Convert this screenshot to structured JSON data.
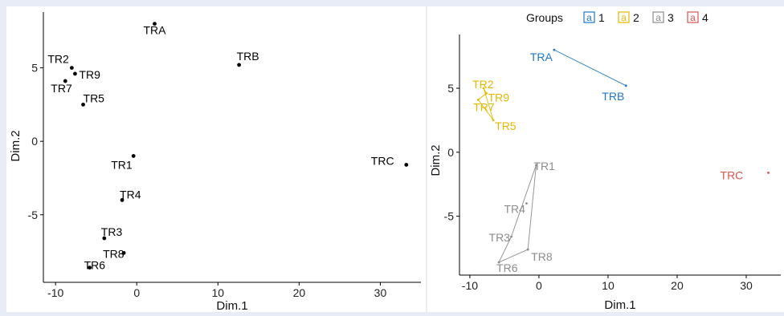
{
  "chart_data": [
    {
      "type": "scatter",
      "title": "",
      "xlabel": "Dim.1",
      "ylabel": "Dim.2",
      "xlim": [
        -11.5,
        35
      ],
      "ylim": [
        -9.6,
        8.8
      ],
      "x_ticks": [
        -10,
        0,
        10,
        20,
        30
      ],
      "y_ticks": [
        -5,
        0,
        5
      ],
      "grid": false,
      "points": [
        {
          "label": "TRA",
          "x": 2.2,
          "y": 8.0
        },
        {
          "label": "TRB",
          "x": 12.6,
          "y": 5.2
        },
        {
          "label": "TR2",
          "x": -8.0,
          "y": 5.0
        },
        {
          "label": "TR9",
          "x": -7.6,
          "y": 4.6
        },
        {
          "label": "TR7",
          "x": -8.8,
          "y": 4.1
        },
        {
          "label": "TR5",
          "x": -6.6,
          "y": 2.5
        },
        {
          "label": "TR1",
          "x": -0.4,
          "y": -1.0
        },
        {
          "label": "TRC",
          "x": 33.2,
          "y": -1.6
        },
        {
          "label": "TR4",
          "x": -1.8,
          "y": -4.0
        },
        {
          "label": "TR3",
          "x": -4.0,
          "y": -6.6
        },
        {
          "label": "TR8",
          "x": -1.6,
          "y": -7.6
        },
        {
          "label": "TR6",
          "x": -5.8,
          "y": -8.6
        }
      ]
    },
    {
      "type": "scatter",
      "title": "",
      "xlabel": "Dim.1",
      "ylabel": "Dim.2",
      "xlim": [
        -11.5,
        35
      ],
      "ylim": [
        -9.6,
        9.2
      ],
      "x_ticks": [
        -10,
        0,
        10,
        20,
        30
      ],
      "y_ticks": [
        -5,
        0,
        5
      ],
      "grid": false,
      "legend": {
        "position": "top",
        "title": "Groups",
        "key_glyph": "a",
        "entries": [
          {
            "label": "1",
            "color": "#1f77c9"
          },
          {
            "label": "2",
            "color": "#e6b800"
          },
          {
            "label": "3",
            "color": "#8c8c8c"
          },
          {
            "label": "4",
            "color": "#d9534f"
          }
        ]
      },
      "series": [
        {
          "name": "1",
          "color": "#1f77c9",
          "hull": [
            "TRA",
            "TRB"
          ],
          "points": [
            {
              "label": "TRA",
              "x": 2.2,
              "y": 8.0
            },
            {
              "label": "TRB",
              "x": 12.6,
              "y": 5.2
            }
          ]
        },
        {
          "name": "2",
          "color": "#e6b800",
          "hull": [
            "TR2",
            "TR5",
            "TR7",
            "TR9"
          ],
          "points": [
            {
              "label": "TR2",
              "x": -8.0,
              "y": 5.0
            },
            {
              "label": "TR9",
              "x": -7.6,
              "y": 4.6
            },
            {
              "label": "TR7",
              "x": -8.8,
              "y": 4.1
            },
            {
              "label": "TR5",
              "x": -6.6,
              "y": 2.5
            }
          ]
        },
        {
          "name": "3",
          "color": "#8c8c8c",
          "hull": [
            "TR1",
            "TR8",
            "TR6",
            "TR3"
          ],
          "points": [
            {
              "label": "TR1",
              "x": -0.4,
              "y": -1.0
            },
            {
              "label": "TR4",
              "x": -1.8,
              "y": -4.0
            },
            {
              "label": "TR3",
              "x": -4.0,
              "y": -6.6
            },
            {
              "label": "TR8",
              "x": -1.6,
              "y": -7.6
            },
            {
              "label": "TR6",
              "x": -5.8,
              "y": -8.6
            }
          ]
        },
        {
          "name": "4",
          "color": "#d9534f",
          "hull": [],
          "points": [
            {
              "label": "TRC",
              "x": 33.2,
              "y": -1.6
            }
          ]
        }
      ]
    }
  ]
}
